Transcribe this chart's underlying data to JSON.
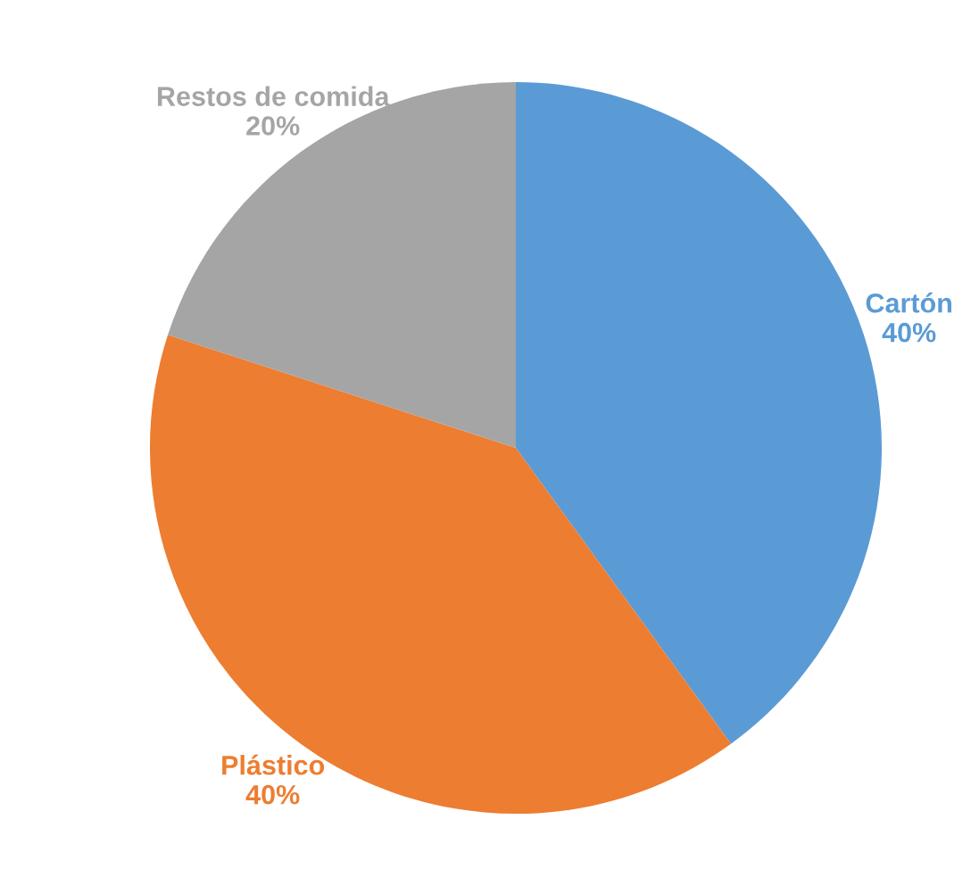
{
  "chart_data": {
    "type": "pie",
    "categories": [
      "Cartón",
      "Plástico",
      "Restos de comida"
    ],
    "values": [
      40,
      40,
      20
    ],
    "value_labels": [
      "40%",
      "40%",
      "20%"
    ],
    "colors": [
      "#5b9bd5",
      "#ed7d31",
      "#a5a5a5"
    ]
  }
}
